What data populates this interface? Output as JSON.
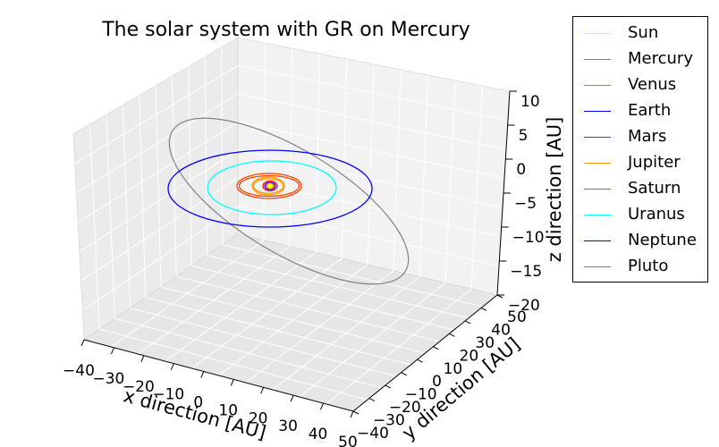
{
  "chart_data": {
    "type": "line",
    "projection": "3d",
    "title": "The solar system with GR on Mercury",
    "xlabel": "x direction [AU]",
    "ylabel": "y direction [AU]",
    "zlabel": "z direction [AU]",
    "xlim": [
      -40,
      50
    ],
    "ylim": [
      -40,
      50
    ],
    "zlim": [
      -20,
      10
    ],
    "x_ticks": [
      "−40",
      "−30",
      "−20",
      "−10",
      "0",
      "10",
      "20",
      "30",
      "40",
      "50"
    ],
    "y_ticks": [
      "−40",
      "−30",
      "−20",
      "−10",
      "0",
      "10",
      "20",
      "30",
      "40",
      "50"
    ],
    "z_ticks": [
      "10",
      "5",
      "0",
      "−5",
      "−10",
      "−15",
      "−20"
    ],
    "grid": true,
    "legend_position": "outside-top-right",
    "series": [
      {
        "name": "Sun",
        "color": "#ffff00",
        "orbit_radius_au": 0
      },
      {
        "name": "Mercury",
        "color": "#808080",
        "orbit_radius_au": 0.39
      },
      {
        "name": "Venus",
        "color": "#ff6600",
        "orbit_radius_au": 0.72
      },
      {
        "name": "Earth",
        "color": "#0000ff",
        "orbit_radius_au": 1.0
      },
      {
        "name": "Mars",
        "color": "#ff0000",
        "orbit_radius_au": 1.52
      },
      {
        "name": " Jupiter",
        "color": "#ff9900",
        "orbit_radius_au": 5.2
      },
      {
        "name": "Saturn",
        "color": "#ff4400",
        "orbit_radius_au": 9.5
      },
      {
        "name": "Uranus",
        "color": "#00ffff",
        "orbit_radius_au": 19.2
      },
      {
        "name": "Neptune",
        "color": "#0000ff",
        "orbit_radius_au": 30.1
      },
      {
        "name": "Pluto",
        "color": "#808080",
        "orbit_radius_au": 39.5
      }
    ]
  }
}
